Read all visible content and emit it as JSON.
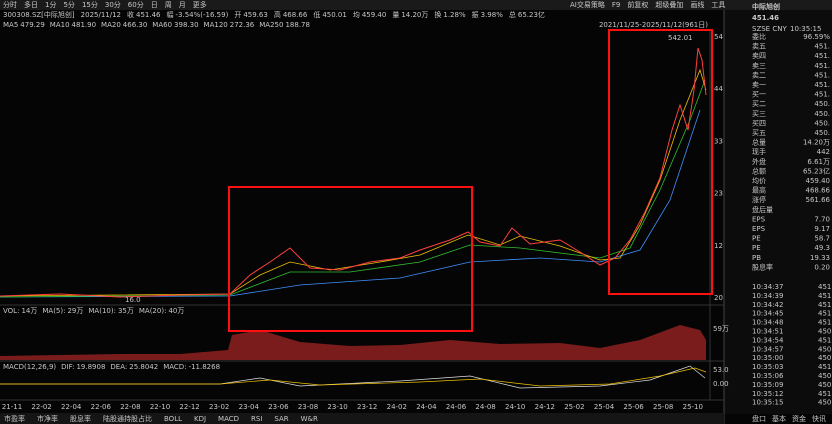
{
  "toolbar": {
    "tabs": [
      "分时",
      "多日",
      "1分",
      "5分",
      "15分",
      "30分",
      "60分",
      "日",
      "周",
      "月",
      "更多"
    ],
    "right": [
      "AI交易策略",
      "F9",
      "前复权",
      "超级叠加",
      "画线",
      "工具"
    ]
  },
  "quote_bar": {
    "code": "300308.SZ[中际旭创]",
    "date": "2025/11/12",
    "items": [
      {
        "k": "收",
        "v": "451.46"
      },
      {
        "k": "幅",
        "v": "-3.54%(-16.59)"
      },
      {
        "k": "开",
        "v": "459.63"
      },
      {
        "k": "高",
        "v": "468.66"
      },
      {
        "k": "低",
        "v": "450.01"
      },
      {
        "k": "均",
        "v": "459.40"
      },
      {
        "k": "量",
        "v": "14.20万"
      },
      {
        "k": "换",
        "v": "1.28%"
      },
      {
        "k": "振",
        "v": "3.98%"
      },
      {
        "k": "总",
        "v": "65.23亿"
      }
    ]
  },
  "ma_legend": [
    {
      "k": "MA5",
      "v": "479.29",
      "color": "#e0e0e0"
    },
    {
      "k": "MA10",
      "v": "481.90",
      "color": "#f0c000"
    },
    {
      "k": "MA20",
      "v": "466.30",
      "color": "#d040d0"
    },
    {
      "k": "MA60",
      "v": "398.30",
      "color": "#30c030"
    },
    {
      "k": "MA120",
      "v": "272.36",
      "color": "#4090ff"
    },
    {
      "k": "MA250",
      "v": "188.78",
      "color": "#40d0d0"
    }
  ],
  "range": "2021/11/25-2025/11/12(961日)",
  "price_axis": [
    "54",
    "44",
    "33",
    "23",
    "12",
    "20"
  ],
  "high_label": "542.01",
  "low_label": "16.0",
  "volume": {
    "items": [
      {
        "k": "VOL:",
        "v": "14万",
        "color": "#e0e0e0"
      },
      {
        "k": "MA(5):",
        "v": "29万",
        "color": "#f0c000"
      },
      {
        "k": "MA(10):",
        "v": "35万",
        "color": "#d040d0"
      },
      {
        "k": "MA(20):",
        "v": "40万",
        "color": "#30c030"
      }
    ],
    "axis": "59万"
  },
  "macd": {
    "title": "MACD(12,26,9)",
    "items": [
      {
        "k": "DIF:",
        "v": "19.8908",
        "color": "#e0e0e0"
      },
      {
        "k": "DEA:",
        "v": "25.8042",
        "color": "#f0c000"
      },
      {
        "k": "MACD:",
        "v": "-11.8268",
        "color": "#d040d0"
      }
    ],
    "axis": [
      "53.0",
      "0.00"
    ]
  },
  "x_axis": [
    "21-11",
    "22-02",
    "22-04",
    "22-06",
    "22-08",
    "22-10",
    "22-12",
    "23-02",
    "23-04",
    "23-06",
    "23-08",
    "23-10",
    "23-12",
    "24-02",
    "24-04",
    "24-06",
    "24-08",
    "24-10",
    "24-12",
    "25-02",
    "25-04",
    "25-06",
    "25-08",
    "25-10"
  ],
  "indicator_tabs": [
    "市盈率",
    "市净率",
    "股息率",
    "陆股通持股占比",
    "BOLL",
    "KDJ",
    "MACD",
    "RSI",
    "SAR",
    "W&R"
  ],
  "side": {
    "name": "中际旭创",
    "price": "451.46",
    "market": "SZSE CNY",
    "time": "10:35:15",
    "rows": [
      {
        "k": "委比",
        "v": "96.59%",
        "color": "#ff3030"
      },
      {
        "k": "卖五",
        "v": "451.",
        "color": "#20c020"
      },
      {
        "k": "卖四",
        "v": "451.",
        "color": "#20c020"
      },
      {
        "k": "卖三",
        "v": "451.",
        "color": "#20c020"
      },
      {
        "k": "卖二",
        "v": "451.",
        "color": "#20c020"
      },
      {
        "k": "卖一",
        "v": "451.",
        "color": "#20c020"
      },
      {
        "k": "买一",
        "v": "451.",
        "color": "#20c020"
      },
      {
        "k": "买二",
        "v": "450.",
        "color": "#20c020"
      },
      {
        "k": "买三",
        "v": "450.",
        "color": "#20c020"
      },
      {
        "k": "买四",
        "v": "450.",
        "color": "#20c020"
      },
      {
        "k": "买五",
        "v": "450.",
        "color": "#20c020"
      },
      {
        "k": "总量",
        "v": "14.20万",
        "color": "#e0e0e0"
      },
      {
        "k": "现手",
        "v": "442",
        "color": "#e0e0e0"
      },
      {
        "k": "外盘",
        "v": "6.61万",
        "color": "#ff3030"
      },
      {
        "k": "总额",
        "v": "65.23亿",
        "color": "#e0e0e0"
      },
      {
        "k": "均价",
        "v": "459.40",
        "color": "#20c020"
      },
      {
        "k": "最高",
        "v": "468.66",
        "color": "#ff3030"
      },
      {
        "k": "涨停",
        "v": "561.66",
        "color": "#ff3030"
      },
      {
        "k": "盘后量",
        "color": "#e0e0e0"
      },
      {
        "k": "EPS",
        "v": "7.70",
        "color": "#e0e0e0"
      },
      {
        "k": "EPS",
        "v": "9.17",
        "color": "#e0e0e0"
      },
      {
        "k": "PE",
        "v": "58.7",
        "color": "#e0e0e0"
      },
      {
        "k": "PE",
        "v": "49.3",
        "color": "#e0e0e0"
      },
      {
        "k": "PB",
        "v": "19.33",
        "color": "#e0e0e0"
      },
      {
        "k": "股息率",
        "v": "0.20",
        "color": "#e0e0e0"
      }
    ],
    "ticks": [
      {
        "t": "10:34:37",
        "p": "451"
      },
      {
        "t": "10:34:39",
        "p": "451"
      },
      {
        "t": "10:34:42",
        "p": "451"
      },
      {
        "t": "10:34:45",
        "p": "451"
      },
      {
        "t": "10:34:48",
        "p": "451"
      },
      {
        "t": "10:34:51",
        "p": "450"
      },
      {
        "t": "10:34:54",
        "p": "451"
      },
      {
        "t": "10:34:57",
        "p": "450"
      },
      {
        "t": "10:35:00",
        "p": "450"
      },
      {
        "t": "10:35:03",
        "p": "451"
      },
      {
        "t": "10:35:06",
        "p": "450"
      },
      {
        "t": "10:35:09",
        "p": "450"
      },
      {
        "t": "10:35:12",
        "p": "451"
      },
      {
        "t": "10:35:15",
        "p": "450"
      }
    ],
    "tabs": [
      "盘口",
      "基本",
      "资金",
      "快讯"
    ]
  }
}
